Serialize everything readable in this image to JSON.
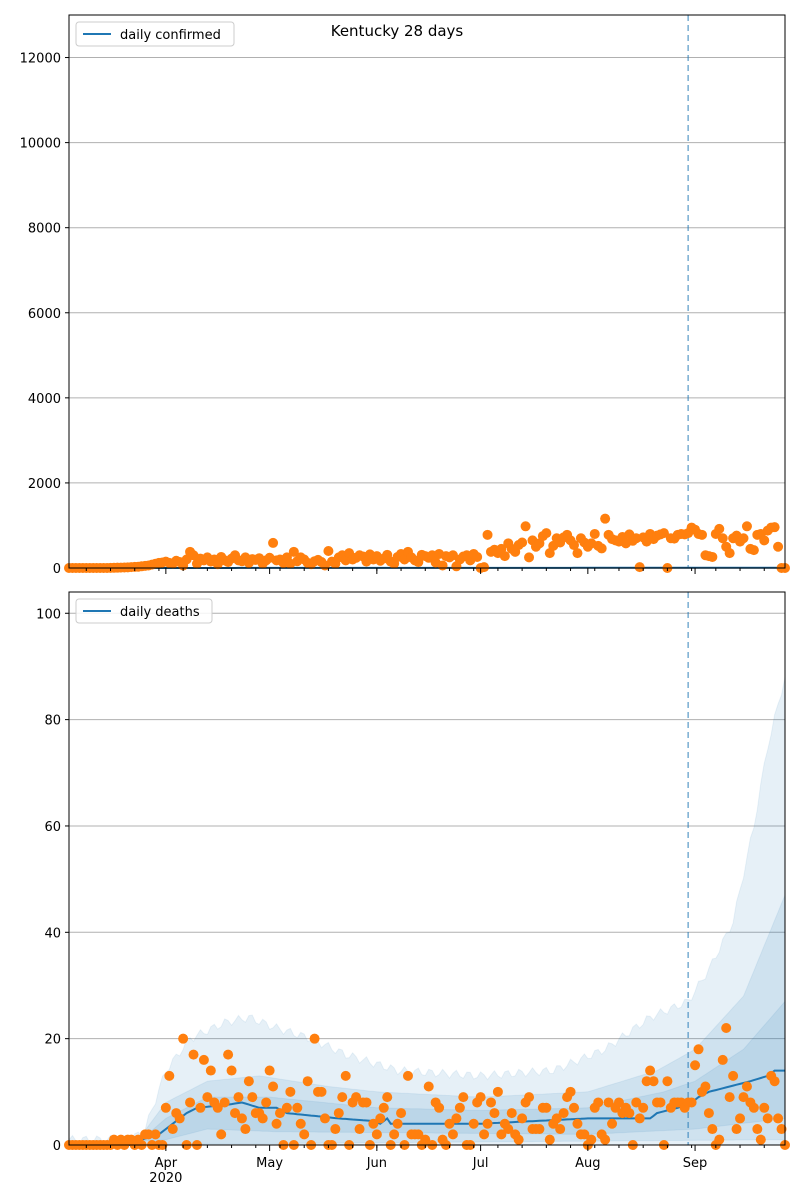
{
  "chart_data": [
    {
      "type": "scatter",
      "title": "Kentucky 28 days",
      "legend": {
        "label": "daily confirmed",
        "placement": "top-left"
      },
      "ylim": [
        0,
        13000
      ],
      "yticks": [
        0,
        2000,
        4000,
        6000,
        8000,
        10000,
        12000
      ],
      "x_start": "2020-03-04",
      "x_unit": "day",
      "xlim_days": [
        0,
        207
      ],
      "forecast_start_day": 179,
      "grid": "y",
      "observed": [
        0,
        0,
        0,
        0,
        0,
        0,
        0,
        0,
        0,
        0,
        0,
        0,
        2,
        5,
        8,
        10,
        12,
        15,
        20,
        25,
        30,
        40,
        50,
        60,
        80,
        100,
        120,
        130,
        150,
        120,
        100,
        170,
        140,
        60,
        200,
        380,
        300,
        100,
        220,
        180,
        250,
        150,
        200,
        90,
        260,
        180,
        140,
        220,
        300,
        180,
        160,
        250,
        120,
        210,
        190,
        230,
        100,
        180,
        240,
        590,
        180,
        200,
        120,
        250,
        100,
        380,
        160,
        250,
        200,
        120,
        90,
        160,
        190,
        140,
        60,
        400,
        150,
        100,
        250,
        300,
        180,
        350,
        200,
        240,
        300,
        270,
        150,
        320,
        200,
        280,
        170,
        220,
        310,
        150,
        100,
        260,
        330,
        200,
        380,
        250,
        180,
        140,
        310,
        280,
        240,
        300,
        130,
        330,
        60,
        280,
        250,
        300,
        40,
        200,
        270,
        300,
        180,
        330,
        260,
        0,
        20,
        780,
        380,
        430,
        350,
        450,
        280,
        580,
        450,
        380,
        540,
        600,
        980,
        250,
        650,
        500,
        580,
        750,
        820,
        350,
        520,
        700,
        600,
        720,
        780,
        650,
        540,
        350,
        700,
        600,
        500,
        580,
        800,
        520,
        460,
        1160,
        780,
        680,
        650,
        620,
        730,
        580,
        790,
        640,
        700,
        20,
        720,
        620,
        800,
        680,
        760,
        790,
        820,
        0,
        700,
        690,
        780,
        800,
        790,
        820,
        950,
        900,
        800,
        780,
        300,
        280,
        260,
        800,
        920,
        700,
        500,
        350,
        700,
        760,
        620,
        700,
        980,
        450,
        420,
        780,
        800,
        650,
        880,
        950,
        960,
        500,
        0,
        0
      ],
      "median": [
        [
          0,
          0
        ],
        [
          207,
          5
        ]
      ],
      "colors": {
        "points": "#ff7f0e",
        "line": "#1f77b4",
        "band": "#1f77b4",
        "grid": "#b0b0b0"
      }
    },
    {
      "type": "scatter",
      "title": "",
      "legend": {
        "label": "daily deaths",
        "placement": "top-left"
      },
      "ylim": [
        0,
        104
      ],
      "yticks": [
        0,
        20,
        40,
        60,
        80,
        100
      ],
      "x_start": "2020-03-04",
      "x_unit": "day",
      "xlim_days": [
        0,
        207
      ],
      "forecast_start_day": 179,
      "grid": "y",
      "xticks": [
        {
          "day": 28,
          "label": "Apr",
          "sublabel": "2020"
        },
        {
          "day": 58,
          "label": "May"
        },
        {
          "day": 89,
          "label": "Jun"
        },
        {
          "day": 119,
          "label": "Jul"
        },
        {
          "day": 150,
          "label": "Aug"
        },
        {
          "day": 181,
          "label": "Sep"
        }
      ],
      "observed": [
        0,
        0,
        0,
        0,
        0,
        0,
        0,
        0,
        0,
        0,
        0,
        0,
        0,
        1,
        0,
        1,
        0,
        1,
        1,
        0,
        1,
        0,
        2,
        2,
        0,
        2,
        0,
        0,
        7,
        13,
        3,
        6,
        5,
        20,
        0,
        8,
        17,
        0,
        7,
        16,
        9,
        14,
        8,
        7,
        2,
        8,
        17,
        14,
        6,
        9,
        5,
        3,
        12,
        9,
        6,
        6,
        5,
        8,
        14,
        11,
        4,
        6,
        0,
        7,
        10,
        0,
        7,
        4,
        2,
        12,
        0,
        20,
        10,
        10,
        5,
        0,
        0,
        3,
        6,
        9,
        13,
        0,
        8,
        9,
        3,
        8,
        8,
        0,
        4,
        2,
        5,
        7,
        9,
        0,
        2,
        4,
        6,
        0,
        13,
        2,
        2,
        2,
        0,
        1,
        11,
        0,
        8,
        7,
        1,
        0,
        4,
        2,
        5,
        7,
        9,
        0,
        0,
        4,
        8,
        9,
        2,
        4,
        8,
        6,
        10,
        2,
        4,
        3,
        6,
        2,
        1,
        5,
        8,
        9,
        3,
        3,
        3,
        7,
        7,
        1,
        4,
        5,
        3,
        6,
        9,
        10,
        7,
        4,
        2,
        2,
        0,
        1,
        7,
        8,
        2,
        1,
        8,
        4,
        7,
        8,
        6,
        7,
        6,
        0,
        8,
        5,
        7,
        12,
        14,
        12,
        8,
        8,
        0,
        12,
        7,
        8,
        8,
        8,
        7,
        8,
        8,
        15,
        18,
        10,
        11,
        6,
        3,
        0,
        1,
        16,
        22,
        9,
        13,
        3,
        5,
        9,
        11,
        8,
        7,
        3,
        1,
        7,
        5,
        13,
        12,
        5,
        3,
        0
      ],
      "median": [
        [
          0,
          0
        ],
        [
          20,
          0
        ],
        [
          21,
          1
        ],
        [
          26,
          2
        ],
        [
          28,
          3
        ],
        [
          30,
          4
        ],
        [
          32,
          5
        ],
        [
          34,
          6
        ],
        [
          37,
          7
        ],
        [
          45,
          7.5
        ],
        [
          50,
          8
        ],
        [
          55,
          7
        ],
        [
          60,
          7
        ],
        [
          63,
          6
        ],
        [
          78,
          5
        ],
        [
          88,
          4.5
        ],
        [
          90,
          4
        ],
        [
          92,
          5
        ],
        [
          93,
          4
        ],
        [
          119,
          4
        ],
        [
          150,
          5
        ],
        [
          168,
          5
        ],
        [
          170,
          6
        ],
        [
          176,
          7
        ],
        [
          180,
          8
        ],
        [
          182,
          9
        ],
        [
          185,
          10
        ],
        [
          191,
          11
        ],
        [
          197,
          12
        ],
        [
          202,
          13
        ],
        [
          204,
          14
        ],
        [
          207,
          14
        ]
      ],
      "bands": [
        {
          "name": "outer",
          "lower": [
            [
              0,
              0
            ],
            [
              207,
              0
            ]
          ],
          "upper": [
            [
              0,
              1
            ],
            [
              18,
              1
            ],
            [
              22,
              3
            ],
            [
              28,
              14
            ],
            [
              35,
              20
            ],
            [
              45,
              23
            ],
            [
              52,
              24
            ],
            [
              60,
              22
            ],
            [
              70,
              20
            ],
            [
              80,
              17
            ],
            [
              95,
              14
            ],
            [
              119,
              13
            ],
            [
              140,
              14
            ],
            [
              155,
              18
            ],
            [
              168,
              24
            ],
            [
              179,
              27
            ],
            [
              185,
              33
            ],
            [
              192,
              42
            ],
            [
              198,
              60
            ],
            [
              202,
              75
            ],
            [
              207,
              88
            ]
          ]
        },
        {
          "name": "middle",
          "lower": [
            [
              0,
              0
            ],
            [
              207,
              1
            ]
          ],
          "upper": [
            [
              0,
              0.5
            ],
            [
              20,
              1
            ],
            [
              28,
              8
            ],
            [
              40,
              12
            ],
            [
              55,
              13
            ],
            [
              75,
              11
            ],
            [
              89,
              10
            ],
            [
              119,
              9
            ],
            [
              150,
              10
            ],
            [
              170,
              14
            ],
            [
              181,
              18
            ],
            [
              195,
              28
            ],
            [
              207,
              47
            ]
          ]
        },
        {
          "name": "inner",
          "lower": [
            [
              0,
              0
            ],
            [
              28,
              1
            ],
            [
              40,
              3
            ],
            [
              60,
              2.5
            ],
            [
              150,
              2
            ],
            [
              181,
              3
            ],
            [
              207,
              5
            ]
          ],
          "upper": [
            [
              0,
              0.2
            ],
            [
              20,
              0.5
            ],
            [
              28,
              5
            ],
            [
              40,
              9
            ],
            [
              58,
              9
            ],
            [
              89,
              7
            ],
            [
              119,
              6.5
            ],
            [
              150,
              7
            ],
            [
              172,
              10
            ],
            [
              181,
              12
            ],
            [
              195,
              18
            ],
            [
              207,
              27
            ]
          ]
        }
      ],
      "colors": {
        "points": "#ff7f0e",
        "line": "#1f77b4",
        "band": "#1f77b4",
        "grid": "#b0b0b0"
      }
    }
  ]
}
